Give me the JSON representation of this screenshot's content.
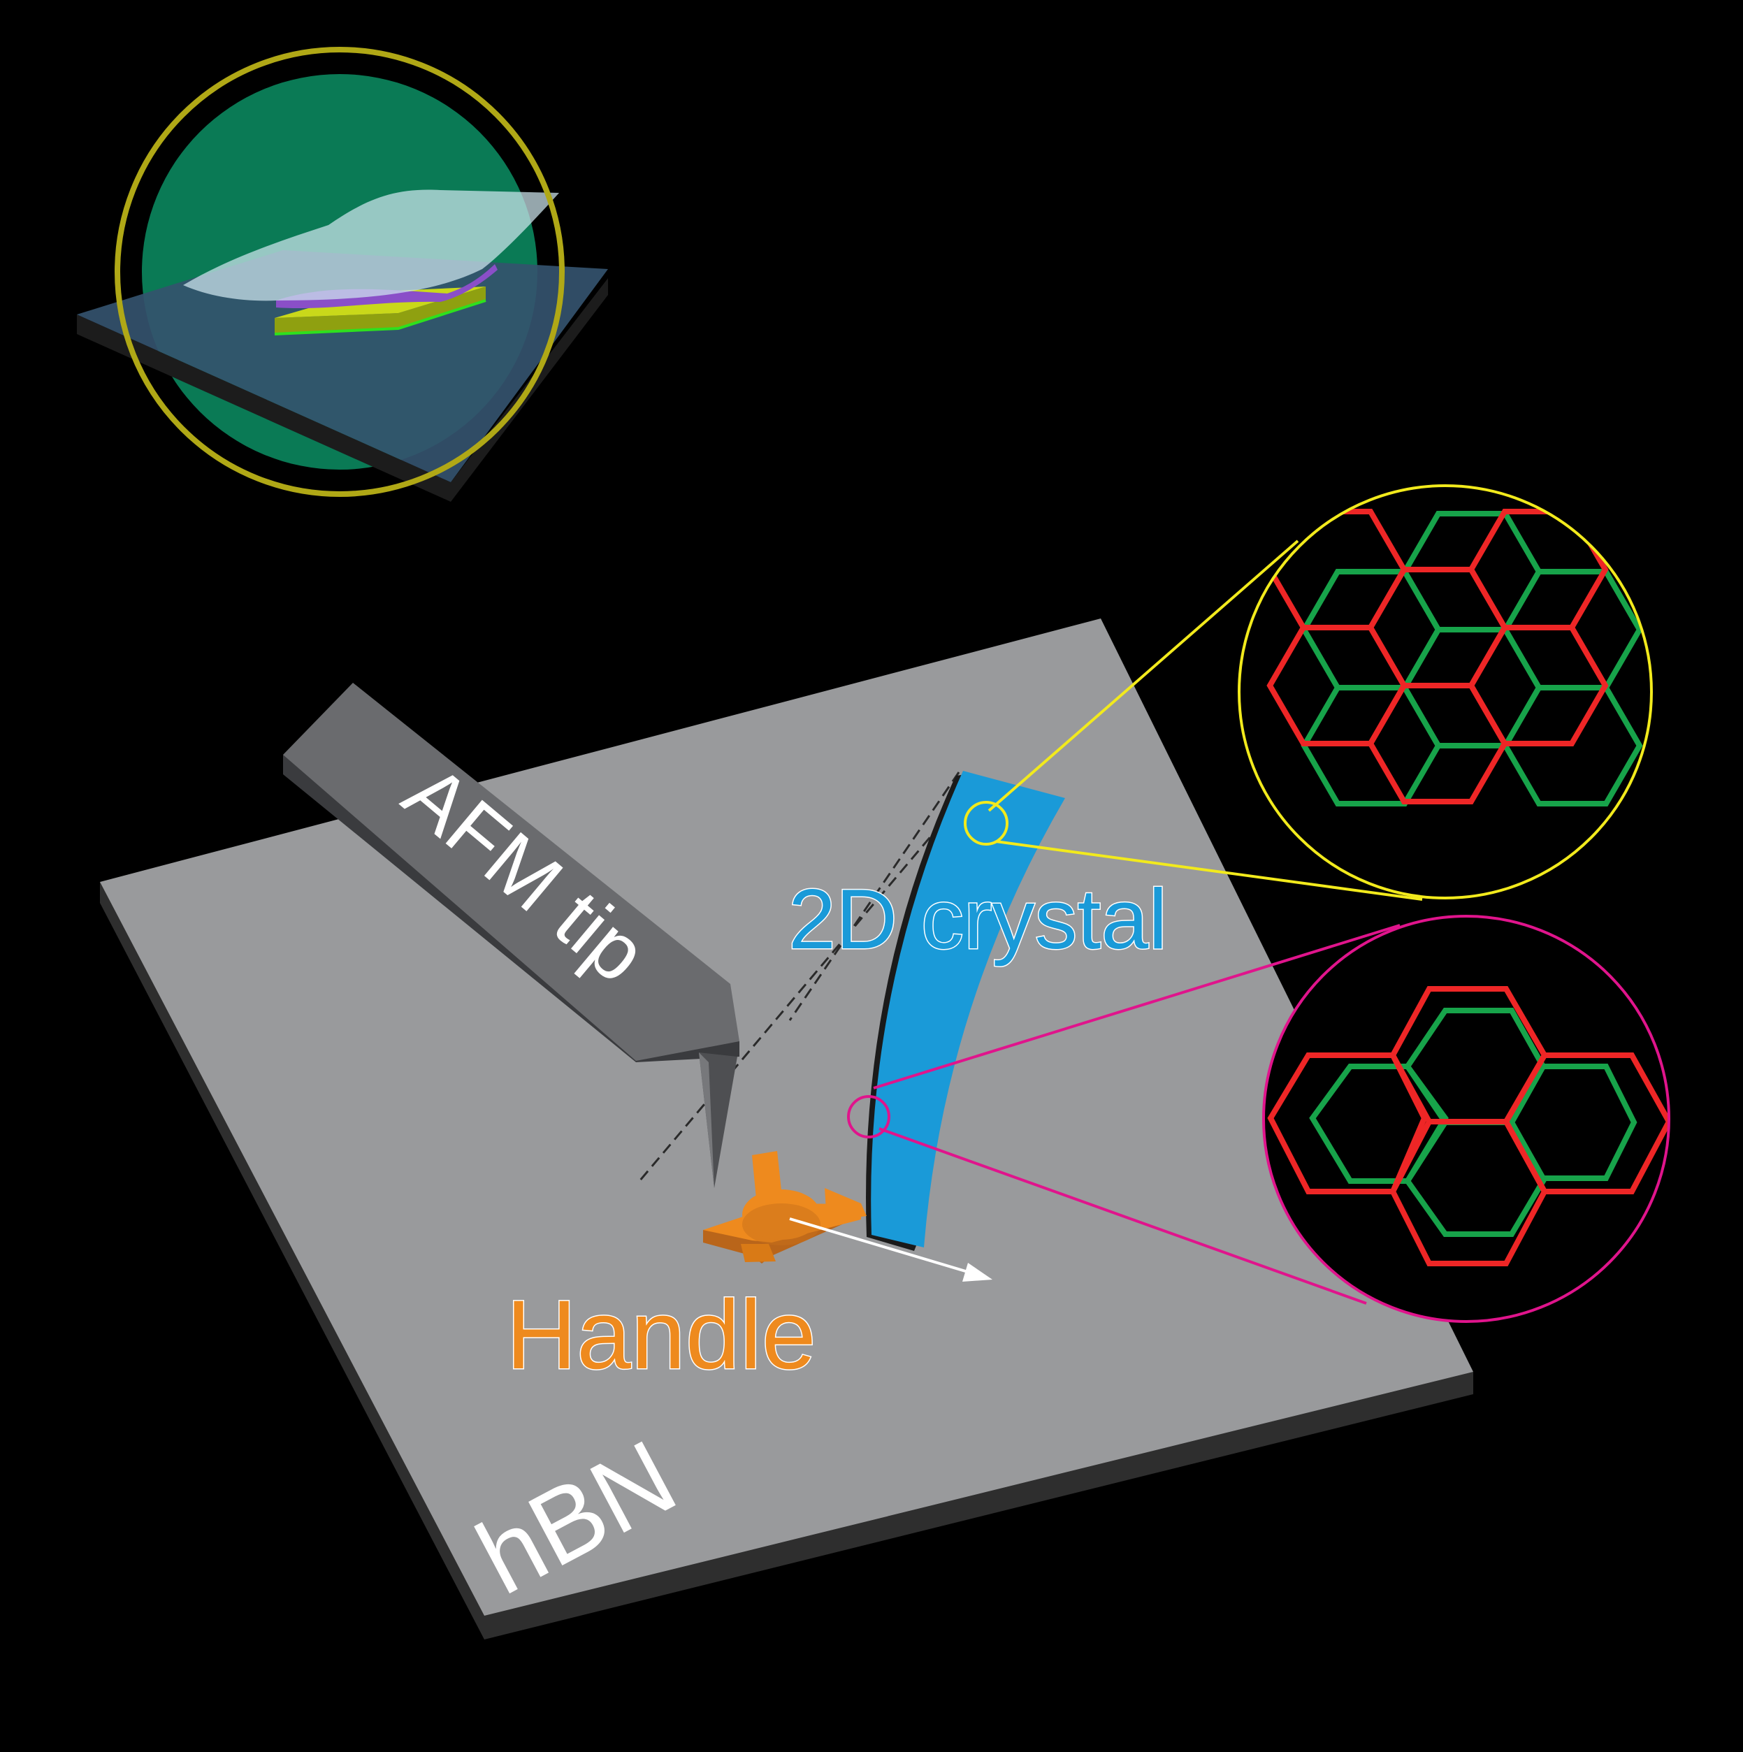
{
  "labels": {
    "afm_tip": "AFM tip",
    "crystal": "2D crystal",
    "handle": "Handle",
    "substrate": "hBN"
  },
  "colors": {
    "background": "#000000",
    "substrate": "#999a9c",
    "substrate_edge": "#3a3a3a",
    "afm_tip_top": "#6a6b6e",
    "afm_tip_side": "#4a4b4e",
    "crystal": "#1a9ad8",
    "crystal_label_outline": "#2aa6dc",
    "handle": "#ee8a1e",
    "handle_side": "#b9651a",
    "lattice_red": "#ee2626",
    "lattice_green": "#17a34a",
    "zoom_aligned": "#f2ea1c",
    "zoom_twisted": "#e0148c",
    "inset_ring": "#b0a816",
    "inset_disc": "#0a7a55",
    "inset_platform": "#2e4a66",
    "inset_flake_yellow": "#c9d81a",
    "inset_flake_purple": "#8a4fc8",
    "inset_film": "#cfe6ee"
  },
  "icons": {
    "motion_arrow": "arrow-right-icon",
    "inset": "transfer-stack-icon"
  }
}
